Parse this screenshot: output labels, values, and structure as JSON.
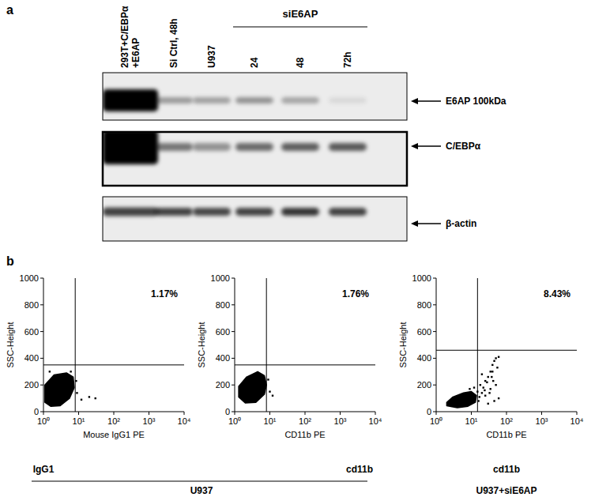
{
  "panel_a": {
    "label": "a",
    "group_label": "siE6AP",
    "lanes": [
      [
        "293T+C/EBPα",
        "+E6AP"
      ],
      [
        "Si Ctrl, 48h"
      ],
      [
        "U937"
      ],
      [
        "24"
      ],
      [
        "48"
      ],
      [
        "72h"
      ]
    ],
    "rows": [
      {
        "label": "E6AP 100kDa",
        "intensity": [
          1,
          0.35,
          0.32,
          0.38,
          0.3,
          0.08
        ]
      },
      {
        "label": "C/EBPα",
        "intensity": [
          1,
          0.5,
          0.38,
          0.55,
          0.6,
          0.62
        ]
      },
      {
        "label": "β-actin",
        "intensity": [
          0.72,
          0.72,
          0.7,
          0.72,
          0.78,
          0.72
        ]
      }
    ]
  },
  "panel_b": {
    "label": "b",
    "sample_labels": [
      "IgG1",
      "cd11b",
      "cd11b"
    ],
    "group_labels": [
      "U937",
      "U937+siE6AP"
    ]
  },
  "chart_data": [
    {
      "type": "scatter",
      "x_label": "Mouse IgG1 PE",
      "y_label": "SSC-Height",
      "log": "x",
      "xlim": [
        1,
        10000
      ],
      "xticks": [
        {
          "value": 1,
          "label": "10⁰"
        },
        {
          "value": 10,
          "label": "10¹"
        },
        {
          "value": 100,
          "label": "10²"
        },
        {
          "value": 1000,
          "label": "10³"
        },
        {
          "value": 10000,
          "label": "10⁴"
        }
      ],
      "ylim": [
        0,
        1000
      ],
      "yticks": [
        0,
        200,
        400,
        600,
        800,
        1000
      ],
      "gate": {
        "x": 8,
        "y": 350
      },
      "annotation": "1.17%",
      "color": "#000000",
      "marker": "square",
      "cloud": {
        "x": [
          1.1,
          1.6,
          3,
          5.5,
          7.5,
          7,
          4.5,
          2,
          1.1
        ],
        "y": [
          70,
          40,
          45,
          100,
          180,
          260,
          290,
          275,
          200
        ]
      },
      "x": [
        12,
        20,
        30,
        9,
        8.5,
        6,
        1.5
      ],
      "y": [
        90,
        110,
        100,
        140,
        230,
        300,
        300
      ]
    },
    {
      "type": "scatter",
      "x_label": "CD11b PE",
      "y_label": "SSC-Height",
      "log": "x",
      "xlim": [
        1,
        10000
      ],
      "xticks": [
        {
          "value": 1,
          "label": "10⁰"
        },
        {
          "value": 10,
          "label": "10¹"
        },
        {
          "value": 100,
          "label": "10²"
        },
        {
          "value": 1000,
          "label": "10³"
        },
        {
          "value": 10000,
          "label": "10⁴"
        }
      ],
      "ylim": [
        0,
        1000
      ],
      "yticks": [
        0,
        200,
        400,
        600,
        800,
        1000
      ],
      "gate": {
        "x": 8,
        "y": 350
      },
      "annotation": "1.76%",
      "color": "#000000",
      "marker": "square",
      "cloud": {
        "x": [
          1.3,
          2,
          4,
          7,
          8,
          7,
          4.5,
          2.2,
          1.3
        ],
        "y": [
          110,
          65,
          70,
          130,
          200,
          270,
          300,
          260,
          190
        ]
      },
      "x": [
        10,
        9,
        12
      ],
      "y": [
        150,
        240,
        120
      ]
    },
    {
      "type": "scatter",
      "x_label": "CD11b PE",
      "y_label": "SSC-Height",
      "log": "x",
      "xlim": [
        1,
        10000
      ],
      "xticks": [
        {
          "value": 1,
          "label": "10⁰"
        },
        {
          "value": 10,
          "label": "10¹"
        },
        {
          "value": 100,
          "label": "10²"
        },
        {
          "value": 1000,
          "label": "10³"
        },
        {
          "value": 10000,
          "label": "10⁴"
        }
      ],
      "ylim": [
        0,
        1000
      ],
      "yticks": [
        0,
        200,
        400,
        600,
        800,
        1000
      ],
      "gate": {
        "x": 15,
        "y": 460
      },
      "annotation": "8.43%",
      "color": "#000000",
      "marker": "square",
      "cloud": {
        "x": [
          2,
          4,
          8,
          13,
          14,
          10,
          6,
          3,
          2
        ],
        "y": [
          45,
          30,
          40,
          70,
          120,
          150,
          140,
          110,
          70
        ]
      },
      "x": [
        15,
        18,
        22,
        25,
        30,
        35,
        40,
        45,
        50,
        60,
        40,
        28,
        20,
        35,
        50,
        60,
        45,
        25,
        16,
        30,
        55,
        38,
        20,
        17,
        24,
        33,
        42,
        12,
        9
      ],
      "y": [
        150,
        200,
        180,
        230,
        260,
        300,
        350,
        380,
        400,
        410,
        300,
        220,
        140,
        170,
        200,
        100,
        80,
        120,
        80,
        60,
        330,
        260,
        280,
        110,
        160,
        140,
        230,
        180,
        170
      ]
    }
  ]
}
